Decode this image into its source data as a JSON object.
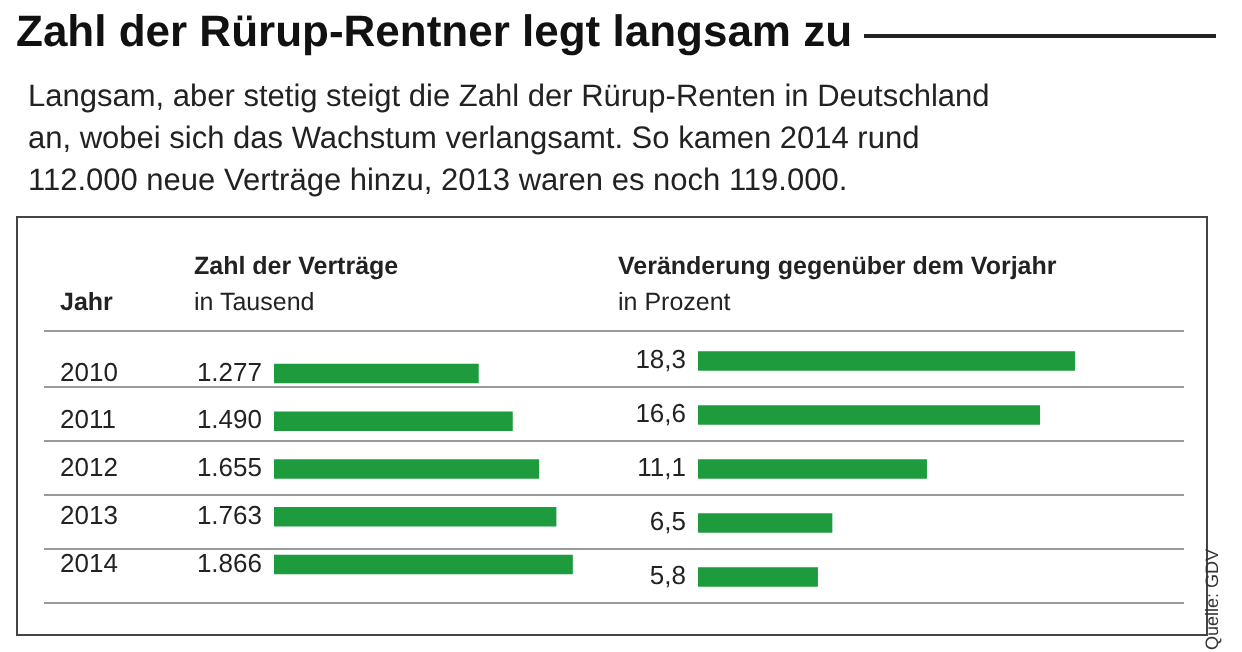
{
  "chart_data": [
    {
      "type": "other",
      "title": "Zahl der Rürup-Rentner legt langsam zu",
      "subtitle": "Langsam, aber stetig steigt die Zahl der Rürup-Renten in Deutschland an, wobei sich das Wachstum verlangsamt. So kamen 2014 rund 112.000 neue Verträge hinzu, 2013 waren es noch 119.000.",
      "annotations": [
        "Quelle: GDV"
      ]
    },
    {
      "type": "bar",
      "orientation": "horizontal",
      "title": "Zahl der Verträge",
      "subtitle": "in Tausend",
      "ylabel": "Jahr",
      "categories": [
        "2010",
        "2011",
        "2012",
        "2013",
        "2014"
      ],
      "values": [
        1277,
        1490,
        1655,
        1763,
        1866
      ],
      "value_labels": [
        "1.277",
        "1.490",
        "1.655",
        "1.763",
        "1.866"
      ],
      "color": "#1e9b3c"
    },
    {
      "type": "bar",
      "orientation": "horizontal",
      "title": "Veränderung gegenüber dem Vorjahr",
      "subtitle": "in Prozent",
      "categories": [
        null,
        null,
        null,
        null,
        null
      ],
      "values": [
        18.3,
        16.6,
        11.1,
        6.5,
        5.8
      ],
      "value_labels": [
        "18,3",
        "16,6",
        "11,1",
        "6,5",
        "5,8"
      ],
      "color": "#1e9b3c"
    }
  ]
}
